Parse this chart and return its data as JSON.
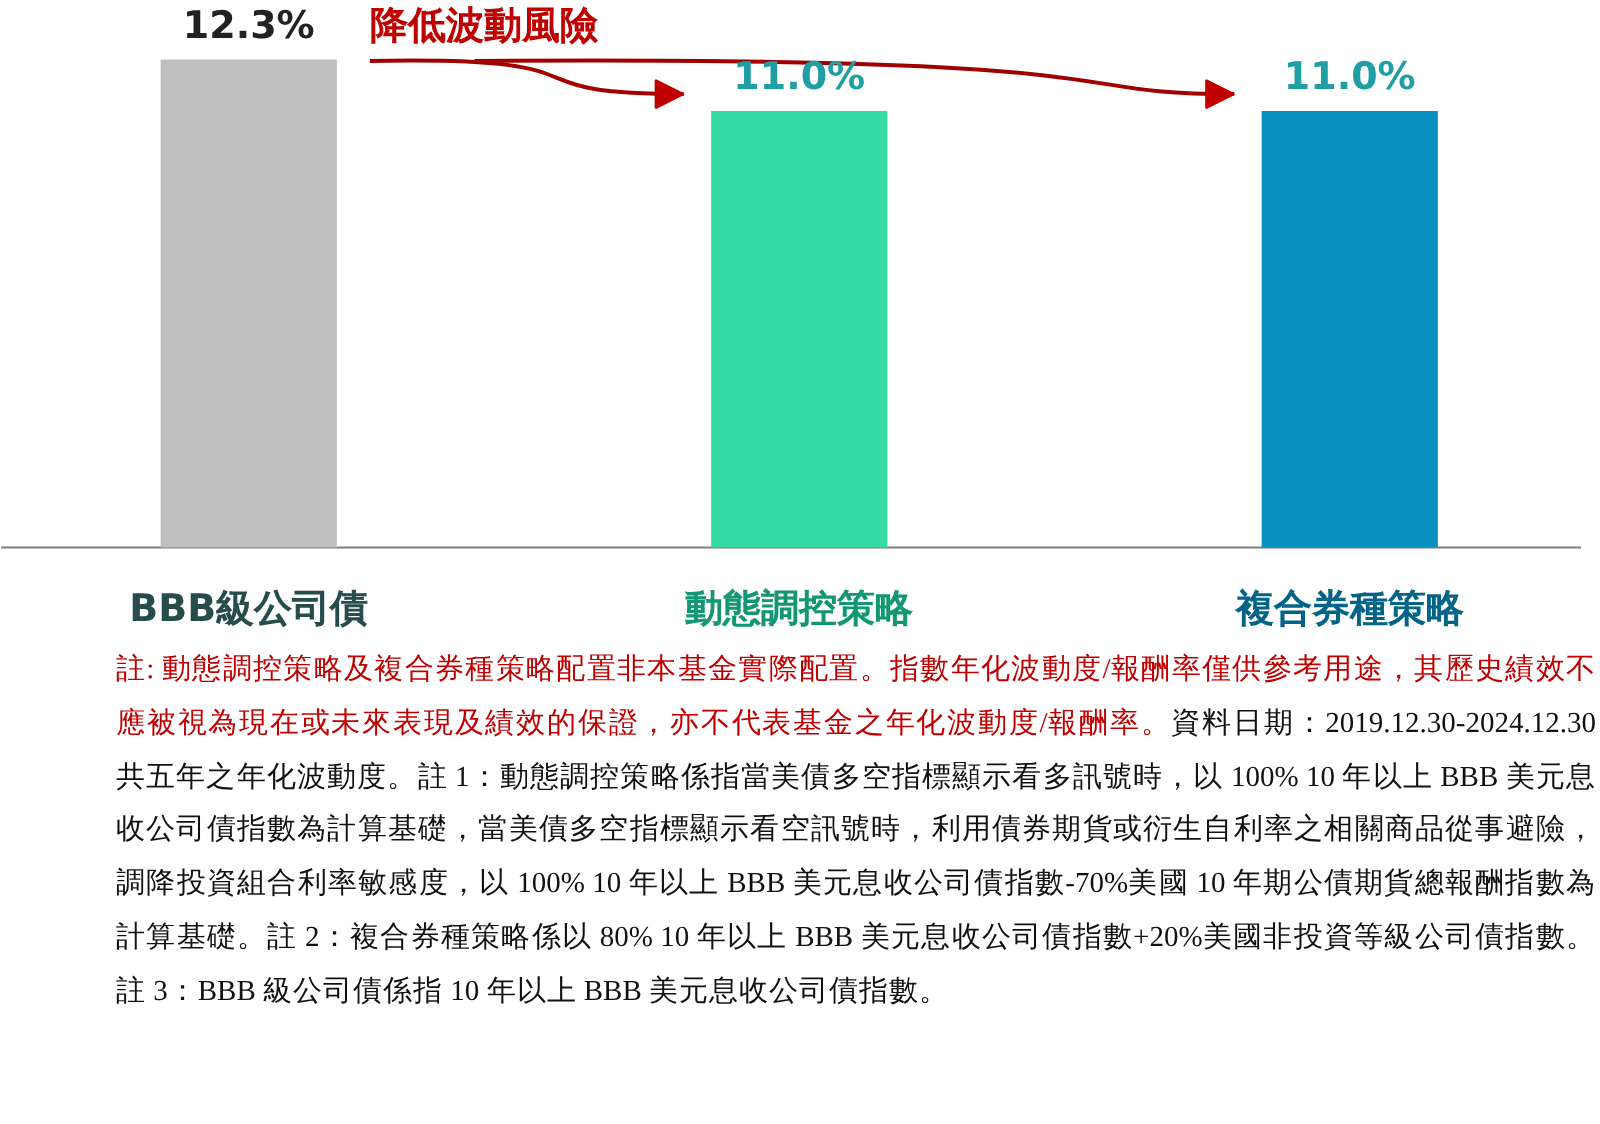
{
  "chart_data": {
    "type": "bar",
    "categories": [
      "BBB級公司債",
      "動態調控策略",
      "複合券種策略"
    ],
    "values": [
      12.3,
      11.0,
      11.0
    ],
    "colors": [
      "#bfbfbf",
      "#34d9a3",
      "#0a8fc2"
    ],
    "value_labels": [
      "12.3%",
      "11.0%",
      "11.0%"
    ],
    "grid": false,
    "annotations": [
      "降低波動風險",
      "註: 動態調控策略及複合券種策略配置非本基金實際配置。指數年化波動度/報酬率僅供參考用途，其歷史績效不應被視為現在或未來表現及績效的保證，亦不代表基金之年化波動度/報酬率。",
      "資料日期：2019.12.30-2024.12.30 共五年之年化波動度。註 1：動態調控策略係指當美債多空指標顯示看多訊號時，以 100% 10 年以上 BBB 美元息收公司債指數為計算基礎，當美債多空指標顯示看空訊號時，利用債券期貨或衍生自利率之相關商品從事避險，調降投資組合利率敏感度，以 100% 10 年以上 BBB 美元息收公司債指數-70%美國 10 年期公債期貨總報酬指數為計算基礎。註 2：複合券種策略係以 80% 10 年以上 BBB 美元息收公司債指數+20%美國非投資等級公司債指數。註 3：BBB 級公司債係指 10 年以上 BBB 美元息收公司債指數。"
    ]
  }
}
